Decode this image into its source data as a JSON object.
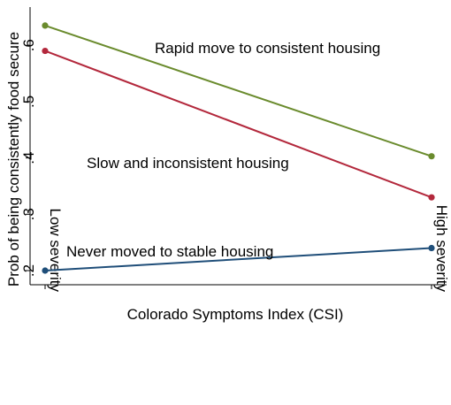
{
  "chart_data": {
    "type": "line",
    "xlabel": "Colorado Symptoms Index (CSI)",
    "ylabel": "Prob of being consistently food secure",
    "categories": [
      "Low severity",
      "High severity"
    ],
    "yticks": [
      ".2",
      ".3",
      ".4",
      ".5",
      ".6"
    ],
    "ytick_values": [
      0.2,
      0.3,
      0.4,
      0.5,
      0.6
    ],
    "ylim": [
      0.2,
      0.65
    ],
    "grid": false,
    "series": [
      {
        "name": "Rapid move to consistent housing",
        "values": [
          0.635,
          0.403
        ],
        "color": "#6a8b2d"
      },
      {
        "name": "Slow and inconsistent housing",
        "values": [
          0.59,
          0.33
        ],
        "color": "#b3283c"
      },
      {
        "name": "Never moved to stable housing",
        "values": [
          0.2,
          0.24
        ],
        "color": "#1f4e79"
      }
    ]
  }
}
